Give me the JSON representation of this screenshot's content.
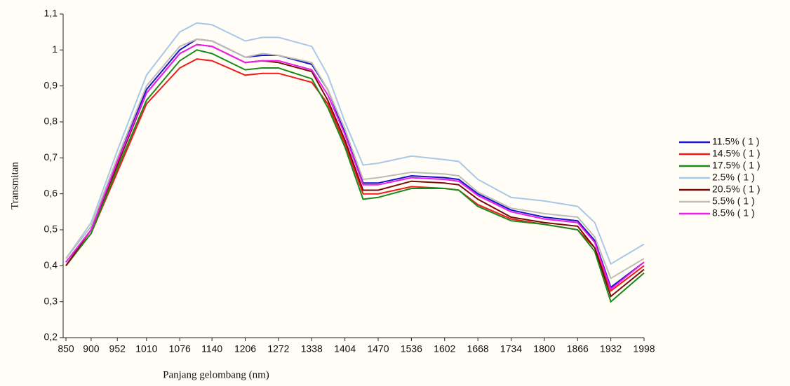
{
  "chart_data": {
    "type": "line",
    "x_label": "Panjang gelombang (nm)",
    "y_label": "Transmitan",
    "x": [
      850,
      900,
      952,
      1010,
      1076,
      1110,
      1140,
      1206,
      1240,
      1272,
      1338,
      1370,
      1404,
      1440,
      1470,
      1536,
      1602,
      1630,
      1668,
      1734,
      1800,
      1866,
      1900,
      1932,
      1998
    ],
    "series": [
      {
        "name": "11.5% ( 1 )",
        "color": "#1414c8",
        "values": [
          0.41,
          0.5,
          0.69,
          0.89,
          1.0,
          1.03,
          1.025,
          0.98,
          0.985,
          0.985,
          0.96,
          0.89,
          0.77,
          0.63,
          0.63,
          0.65,
          0.645,
          0.64,
          0.6,
          0.555,
          0.535,
          0.525,
          0.47,
          0.34,
          0.41
        ]
      },
      {
        "name": "14.5% ( 1 )",
        "color": "#ee1c1c",
        "values": [
          0.4,
          0.49,
          0.66,
          0.85,
          0.95,
          0.975,
          0.97,
          0.93,
          0.935,
          0.935,
          0.91,
          0.85,
          0.74,
          0.6,
          0.6,
          0.62,
          0.615,
          0.61,
          0.57,
          0.53,
          0.515,
          0.5,
          0.45,
          0.33,
          0.4
        ]
      },
      {
        "name": "17.5% ( 1 )",
        "color": "#1a8a1a",
        "values": [
          0.4,
          0.49,
          0.67,
          0.86,
          0.97,
          1.0,
          0.99,
          0.945,
          0.95,
          0.95,
          0.92,
          0.84,
          0.73,
          0.585,
          0.59,
          0.615,
          0.615,
          0.61,
          0.565,
          0.525,
          0.515,
          0.5,
          0.44,
          0.3,
          0.38
        ]
      },
      {
        "name": "2.5% ( 1 )",
        "color": "#a8c8e8",
        "values": [
          0.42,
          0.52,
          0.72,
          0.93,
          1.05,
          1.075,
          1.07,
          1.025,
          1.035,
          1.035,
          1.01,
          0.93,
          0.8,
          0.68,
          0.685,
          0.705,
          0.695,
          0.69,
          0.64,
          0.59,
          0.58,
          0.565,
          0.52,
          0.405,
          0.46
        ]
      },
      {
        "name": "20.5% ( 1 )",
        "color": "#7a0a0a",
        "values": [
          0.4,
          0.5,
          0.68,
          0.88,
          0.99,
          1.015,
          1.01,
          0.965,
          0.97,
          0.965,
          0.94,
          0.86,
          0.75,
          0.61,
          0.61,
          0.635,
          0.63,
          0.625,
          0.585,
          0.535,
          0.52,
          0.51,
          0.45,
          0.315,
          0.39
        ]
      },
      {
        "name": "5.5% ( 1 )",
        "color": "#bdbdb5",
        "values": [
          0.42,
          0.51,
          0.7,
          0.9,
          1.01,
          1.03,
          1.025,
          0.98,
          0.99,
          0.985,
          0.965,
          0.89,
          0.78,
          0.64,
          0.645,
          0.66,
          0.655,
          0.65,
          0.605,
          0.56,
          0.545,
          0.535,
          0.48,
          0.365,
          0.42
        ]
      },
      {
        "name": "8.5% ( 1 )",
        "color": "#ee1cee",
        "values": [
          0.41,
          0.5,
          0.69,
          0.88,
          0.99,
          1.015,
          1.01,
          0.965,
          0.97,
          0.97,
          0.945,
          0.875,
          0.765,
          0.625,
          0.625,
          0.645,
          0.64,
          0.635,
          0.595,
          0.55,
          0.53,
          0.52,
          0.465,
          0.335,
          0.41
        ]
      }
    ],
    "xlim": [
      850,
      1998
    ],
    "xticks": [
      850,
      900,
      952,
      1010,
      1076,
      1140,
      1206,
      1272,
      1338,
      1404,
      1470,
      1536,
      1602,
      1668,
      1734,
      1800,
      1866,
      1932,
      1998
    ],
    "ylim": [
      0.2,
      1.1
    ],
    "yticks": [
      {
        "value": 0.2,
        "label": "0,2"
      },
      {
        "value": 0.3,
        "label": "0,3"
      },
      {
        "value": 0.4,
        "label": "0,4"
      },
      {
        "value": 0.5,
        "label": "0,5"
      },
      {
        "value": 0.6,
        "label": "0,6"
      },
      {
        "value": 0.7,
        "label": "0,7"
      },
      {
        "value": 0.8,
        "label": "0,8"
      },
      {
        "value": 0.9,
        "label": "0,9"
      },
      1,
      {
        "value": 1.1,
        "label": "1,1"
      }
    ],
    "legend": "right"
  }
}
